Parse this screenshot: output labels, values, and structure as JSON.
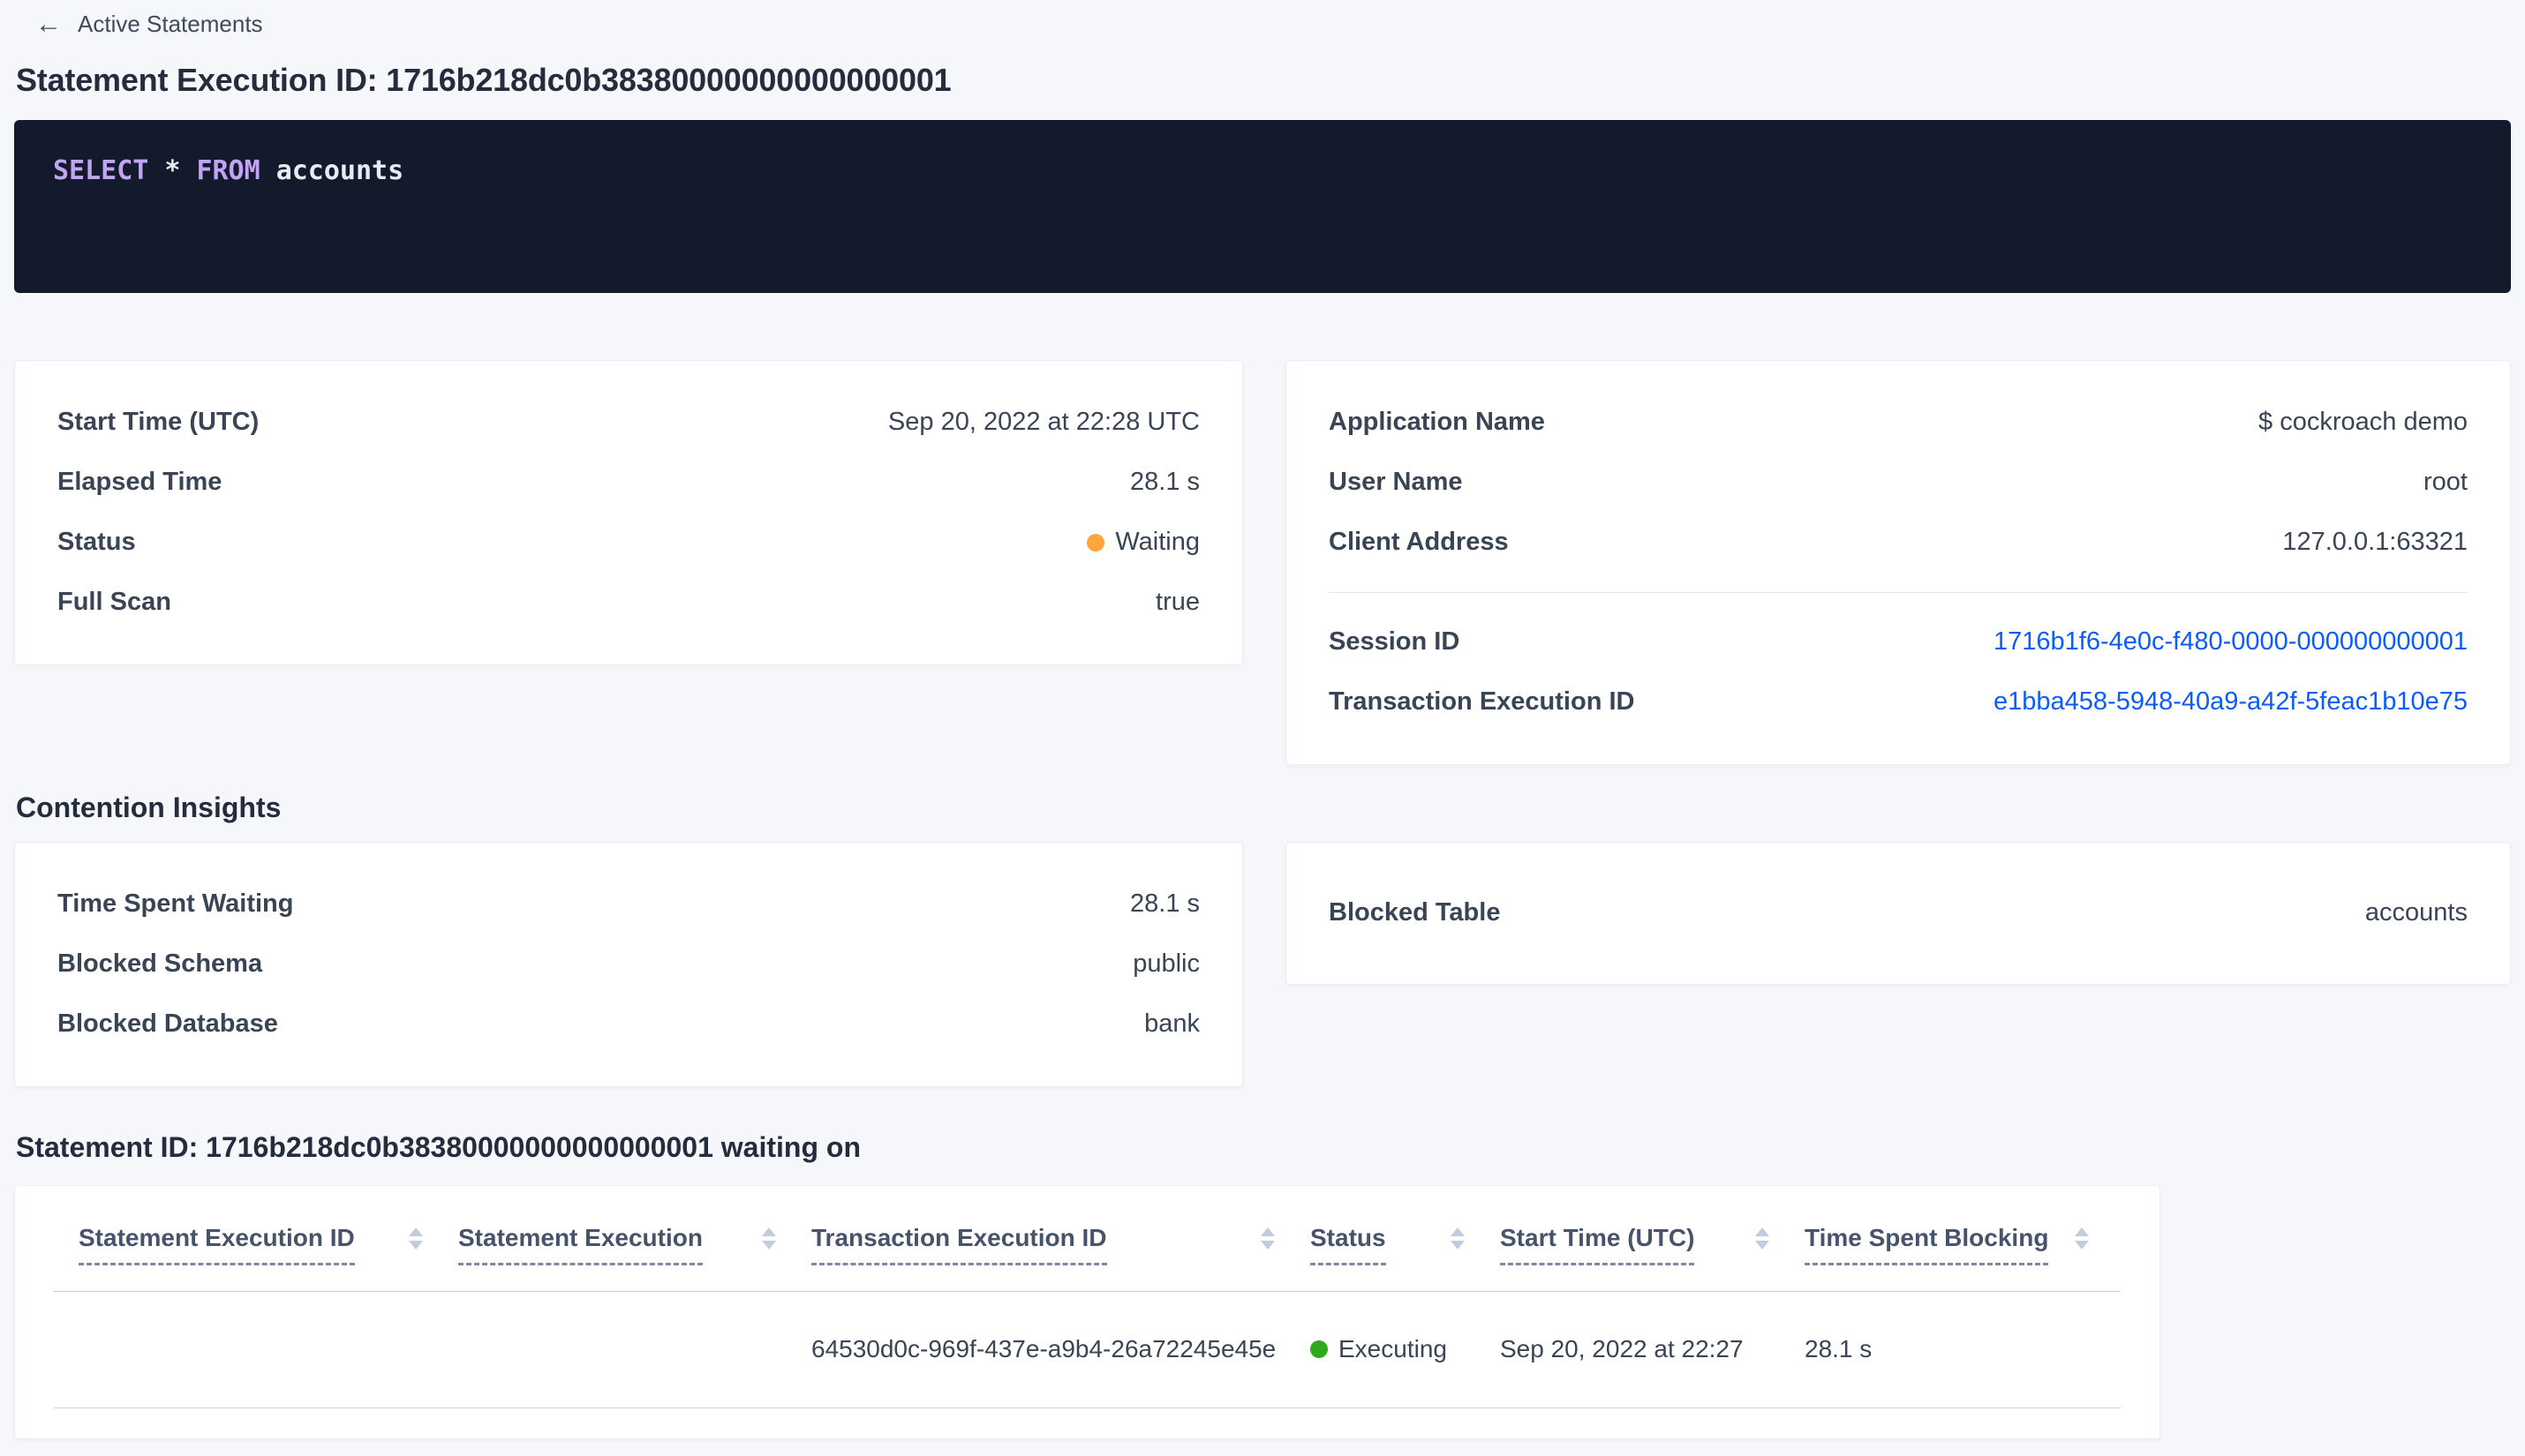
{
  "header": {
    "back_label": "Active Statements",
    "title": "Statement Execution ID: 1716b218dc0b38380000000000000001"
  },
  "icons": {
    "back_arrow": "←"
  },
  "sql": {
    "kw1": "SELECT",
    "star": "*",
    "kw2": "FROM",
    "table": "accounts"
  },
  "execution_card": {
    "rows": [
      {
        "label": "Start Time (UTC)",
        "value": "Sep 20, 2022 at 22:28 UTC"
      },
      {
        "label": "Elapsed Time",
        "value": "28.1 s"
      },
      {
        "label": "Status",
        "value": "Waiting"
      },
      {
        "label": "Full Scan",
        "value": "true"
      }
    ]
  },
  "session_card": {
    "app_label": "Application Name",
    "app_value": "$ cockroach demo",
    "user_label": "User Name",
    "user_value": "root",
    "client_label": "Client Address",
    "client_value": "127.0.0.1:63321",
    "session_label": "Session ID",
    "session_value": "1716b1f6-4e0c-f480-0000-000000000001",
    "txn_label": "Transaction Execution ID",
    "txn_value": "e1bba458-5948-40a9-a42f-5feac1b10e75"
  },
  "contention": {
    "heading": "Contention Insights",
    "left_rows": [
      {
        "label": "Time Spent Waiting",
        "value": "28.1 s"
      },
      {
        "label": "Blocked Schema",
        "value": "public"
      },
      {
        "label": "Blocked Database",
        "value": "bank"
      }
    ],
    "blocked_table_label": "Blocked Table",
    "blocked_table_value": "accounts"
  },
  "waiting_table": {
    "heading": "Statement ID: 1716b218dc0b38380000000000000001 waiting on",
    "columns": [
      "Statement Execution ID",
      "Statement Execution",
      "Transaction Execution ID",
      "Status",
      "Start Time (UTC)",
      "Time Spent Blocking"
    ],
    "row": {
      "statement_execution_id": "",
      "statement_execution": "",
      "txn_execution_id": "64530d0c-969f-437e-a9b4-26a72245e45e",
      "status": "Executing",
      "start_time": "Sep 20, 2022 at 22:27",
      "time_spent_blocking": "28.1 s"
    }
  },
  "colors": {
    "page_background": "#f5f7fa",
    "sql_box_background": "#121a2c",
    "sql_keyword": "#c2a4f4",
    "link_blue": "#0b5cff",
    "waiting_dot": "#ffa53b",
    "executing_dot": "#2faa1f"
  }
}
